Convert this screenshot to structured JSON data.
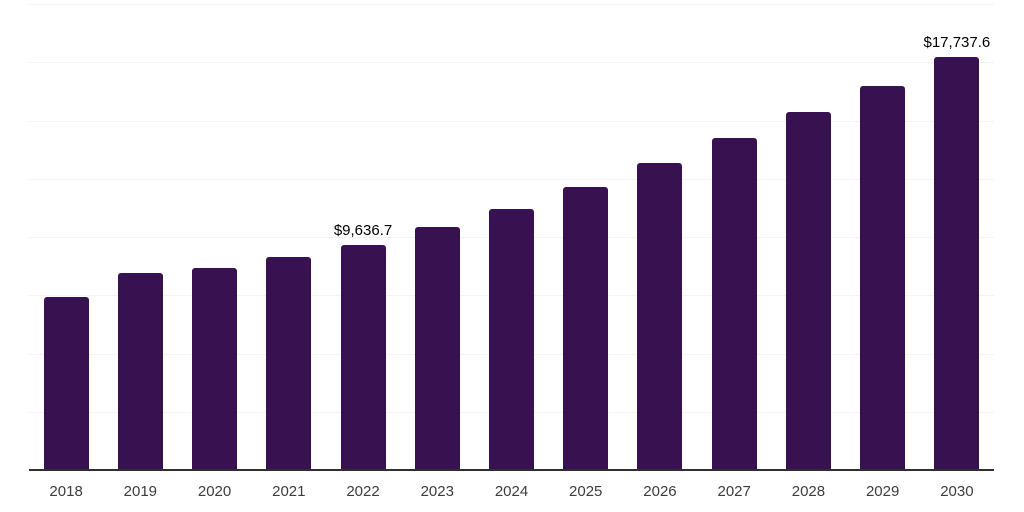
{
  "chart": {
    "background": "#ffffff",
    "bar_color": "#371150",
    "gridline_color": "#f4f4f4",
    "axis_line_color": "#2f2f2f",
    "tick_label_color": "#3d3d3d",
    "value_label_color": "#000000"
  },
  "chart_data": {
    "type": "bar",
    "title": "",
    "xlabel": "",
    "ylabel": "",
    "categories": [
      "2018",
      "2019",
      "2020",
      "2021",
      "2022",
      "2023",
      "2024",
      "2025",
      "2026",
      "2027",
      "2028",
      "2029",
      "2030"
    ],
    "values": [
      7420,
      8450,
      8670,
      9140,
      9636.7,
      10430,
      11200,
      12150,
      13180,
      14250,
      15365,
      16480,
      17737.6
    ],
    "value_labels": {
      "2022": "$9,636.7",
      "2030": "$17,737.6"
    },
    "ylim": [
      0,
      20000
    ],
    "gridline_step": 2500,
    "grid": true,
    "legend": false,
    "y_axis_labels_visible": false
  }
}
